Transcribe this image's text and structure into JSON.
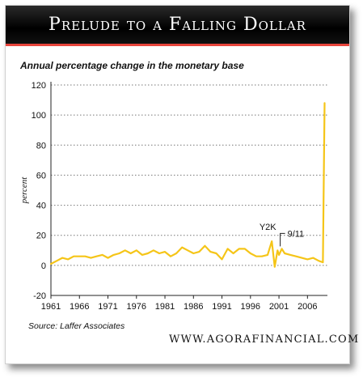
{
  "header": {
    "title": "Prelude to a Falling Dollar",
    "subtitle": "Annual percentage change in the monetary base"
  },
  "footer": {
    "source": "Source: Laffer Associates",
    "website": "WWW.AGORAFINANCIAL.COM"
  },
  "colors": {
    "line": "#f5c518",
    "title_bar": "#000000",
    "title_underline": "#e8453c",
    "grid": "#777777"
  },
  "chart_data": {
    "type": "line",
    "title": "Prelude to a Falling Dollar",
    "subtitle": "Annual percentage change in the monetary base",
    "xlabel": "",
    "ylabel": "percent",
    "xlim": [
      1961,
      2009.5
    ],
    "ylim": [
      -20,
      120
    ],
    "yticks": [
      -20,
      0,
      20,
      40,
      60,
      80,
      100,
      120
    ],
    "xticks": [
      1961,
      1966,
      1971,
      1976,
      1981,
      1986,
      1991,
      1996,
      2001,
      2006
    ],
    "grid": "horizontal dotted",
    "legend": "none",
    "series": [
      {
        "x": [
          1961,
          1962,
          1963,
          1964,
          1965,
          1966,
          1967,
          1968,
          1969,
          1970,
          1971,
          1972,
          1973,
          1974,
          1975,
          1976,
          1977,
          1978,
          1979,
          1980,
          1981,
          1982,
          1983,
          1984,
          1985,
          1986,
          1987,
          1988,
          1989,
          1990,
          1991,
          1992,
          1993,
          1994,
          1995,
          1996,
          1997,
          1998,
          1999,
          1999.75,
          2000.25,
          2000.75,
          2001,
          2001.5,
          2002,
          2003,
          2004,
          2005,
          2006,
          2007,
          2008,
          2008.7,
          2009
        ],
        "y": [
          1,
          3,
          5,
          4,
          6,
          6,
          6,
          5,
          6,
          7,
          5,
          7,
          8,
          10,
          8,
          10,
          7,
          8,
          10,
          8,
          9,
          6,
          8,
          12,
          10,
          8,
          9,
          13,
          9,
          8,
          4,
          11,
          8,
          11,
          11,
          8,
          6,
          6,
          7,
          16,
          -1,
          10,
          7,
          11,
          8,
          7,
          6,
          5,
          4,
          5,
          3,
          2,
          108
        ]
      }
    ],
    "annotations": [
      {
        "label": "Y2K",
        "x": 1999.75,
        "y": 16
      },
      {
        "label": "9/11",
        "x": 2001.5,
        "y": 11
      }
    ]
  }
}
